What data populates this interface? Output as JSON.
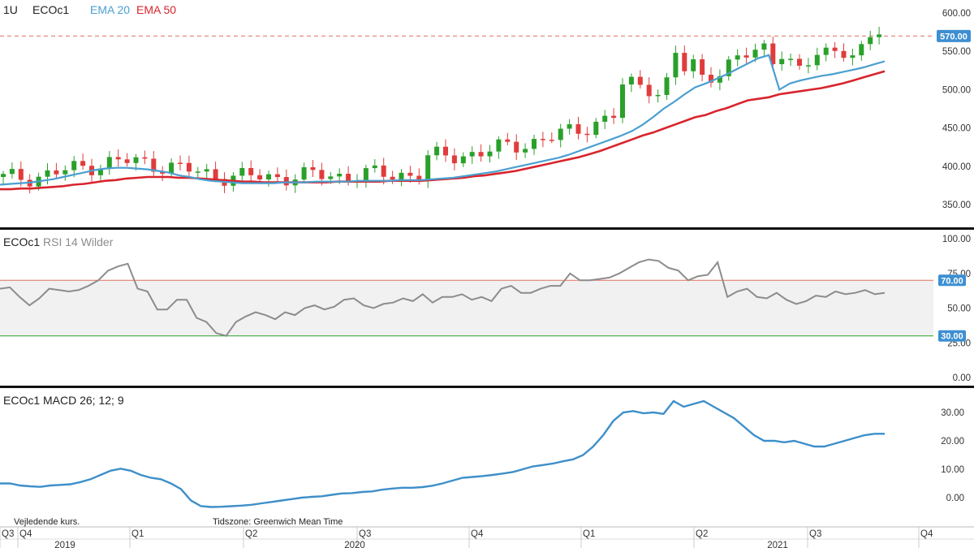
{
  "colors": {
    "up": "#2aa02a",
    "down": "#e03c3c",
    "ema20": "#4a9fd0",
    "ema50": "#d8242c",
    "rsi_line": "#8c8c8c",
    "rsi_band": "#f1f1f1",
    "level_70": "#e07060",
    "level_30": "#2aa02a",
    "badge": "#3d8fd1",
    "macd_line": "#3d8fc9",
    "divider": "#111111"
  },
  "price_panel": {
    "interval": "1U",
    "symbol": "ECOc1",
    "legend": [
      {
        "name": "EMA 20",
        "color": "#4a9fd0"
      },
      {
        "name": "EMA 50",
        "color": "#d8242c"
      }
    ],
    "last_price_label": "570.00",
    "last_price": 570,
    "y_ticks": [
      "600.00",
      "550.00",
      "500.00",
      "450.00",
      "400.00",
      "350.00"
    ]
  },
  "rsi_panel": {
    "symbol": "ECOc1",
    "label": "RSI 14 Wilder",
    "y_ticks": [
      "100.00",
      "75.00",
      "50.00",
      "25.00",
      "0.00"
    ],
    "level_high_label": "70.00",
    "level_low_label": "30.00",
    "level_high": 70,
    "level_low": 30
  },
  "macd_panel": {
    "symbol": "ECOc1",
    "label": "MACD 26; 12; 9",
    "y_ticks": [
      "30.00",
      "20.00",
      "10.00",
      "0.00"
    ],
    "note_left": "Vejledende kurs.",
    "note_timezone": "Tidszone: Greenwich Mean Time"
  },
  "x_axis": {
    "quarters": [
      "Q3",
      "Q4",
      "Q1",
      "Q2",
      "Q3",
      "Q4",
      "Q1",
      "Q2",
      "Q3",
      "Q4"
    ],
    "years": [
      "2019",
      "2020",
      "2021"
    ]
  },
  "chart_data": [
    {
      "type": "candlestick",
      "title": "",
      "ylim": [
        320,
        610
      ],
      "series": [
        {
          "name": "EMA 20",
          "values": [
            376,
            377,
            378,
            379,
            381,
            383,
            386,
            389,
            392,
            395,
            397,
            398,
            398,
            397,
            396,
            394,
            392,
            388,
            386,
            383,
            381,
            380,
            379,
            378,
            378,
            378,
            378,
            379,
            379,
            379,
            380,
            380,
            380,
            380,
            381,
            381,
            381,
            381,
            382,
            382,
            382,
            383,
            384,
            385,
            387,
            389,
            391,
            393,
            396,
            399,
            402,
            405,
            408,
            411,
            415,
            420,
            425,
            430,
            435,
            440,
            446,
            454,
            464,
            475,
            484,
            494,
            503,
            508,
            514,
            520,
            527,
            534,
            541,
            545,
            500,
            508,
            512,
            515,
            518,
            520,
            523,
            526,
            529,
            533,
            537
          ]
        },
        {
          "name": "EMA 50",
          "values": [
            370,
            370,
            371,
            371,
            372,
            373,
            374,
            376,
            377,
            379,
            381,
            382,
            384,
            385,
            386,
            386,
            386,
            385,
            385,
            384,
            383,
            382,
            381,
            380,
            380,
            379,
            379,
            379,
            379,
            379,
            379,
            379,
            380,
            380,
            380,
            380,
            380,
            381,
            381,
            381,
            381,
            382,
            383,
            384,
            385,
            387,
            388,
            390,
            392,
            394,
            397,
            400,
            403,
            406,
            409,
            412,
            416,
            420,
            425,
            430,
            435,
            440,
            444,
            449,
            454,
            459,
            464,
            467,
            472,
            476,
            481,
            486,
            488,
            490,
            494,
            496,
            498,
            500,
            502,
            505,
            508,
            512,
            516,
            520,
            524
          ]
        }
      ]
    },
    {
      "type": "line",
      "title": "",
      "ylim": [
        0,
        100
      ],
      "series": [
        {
          "name": "RSI 14 Wilder",
          "values": [
            64,
            65,
            58,
            52,
            57,
            64,
            63,
            62,
            63,
            66,
            70,
            77,
            80,
            82,
            64,
            62,
            49,
            49,
            56,
            56,
            43,
            40,
            32,
            30,
            40,
            44,
            47,
            45,
            42,
            47,
            45,
            50,
            52,
            49,
            51,
            56,
            57,
            52,
            50,
            53,
            54,
            57,
            55,
            60,
            54,
            58,
            58,
            60,
            56,
            58,
            55,
            64,
            66,
            61,
            61,
            64,
            66,
            66,
            75,
            70,
            70,
            71,
            72,
            75,
            79,
            83,
            85,
            84,
            79,
            77,
            70,
            73,
            74,
            83,
            58,
            62,
            64,
            58,
            57,
            61,
            56,
            53,
            55,
            59,
            58,
            62,
            60,
            61,
            63,
            60,
            61
          ]
        }
      ]
    },
    {
      "type": "line",
      "title": "",
      "ylim": [
        -4,
        36
      ],
      "series": [
        {
          "name": "MACD 26; 12; 9",
          "values": [
            5,
            5,
            4.3,
            4,
            3.8,
            4.3,
            4.5,
            4.7,
            5.5,
            6.5,
            8,
            9.5,
            10.2,
            9.5,
            8,
            7,
            6.5,
            5,
            3,
            -1,
            -3,
            -3.3,
            -3.2,
            -3,
            -2.8,
            -2.5,
            -2,
            -1.5,
            -1,
            -0.5,
            0,
            0.3,
            0.5,
            1,
            1.5,
            1.6,
            2,
            2.2,
            2.8,
            3.2,
            3.5,
            3.5,
            3.7,
            4.2,
            5,
            6,
            7,
            7.3,
            7.6,
            8,
            8.5,
            9,
            10,
            11,
            11.5,
            12,
            12.8,
            13.5,
            15,
            18,
            22,
            27,
            30,
            30.5,
            29.7,
            30,
            29.5,
            34,
            32,
            33,
            34,
            32,
            30,
            28,
            25,
            22,
            20,
            20,
            19.5,
            20,
            19,
            18,
            18,
            19,
            20,
            21,
            22,
            22.5,
            22.5
          ]
        }
      ]
    }
  ]
}
